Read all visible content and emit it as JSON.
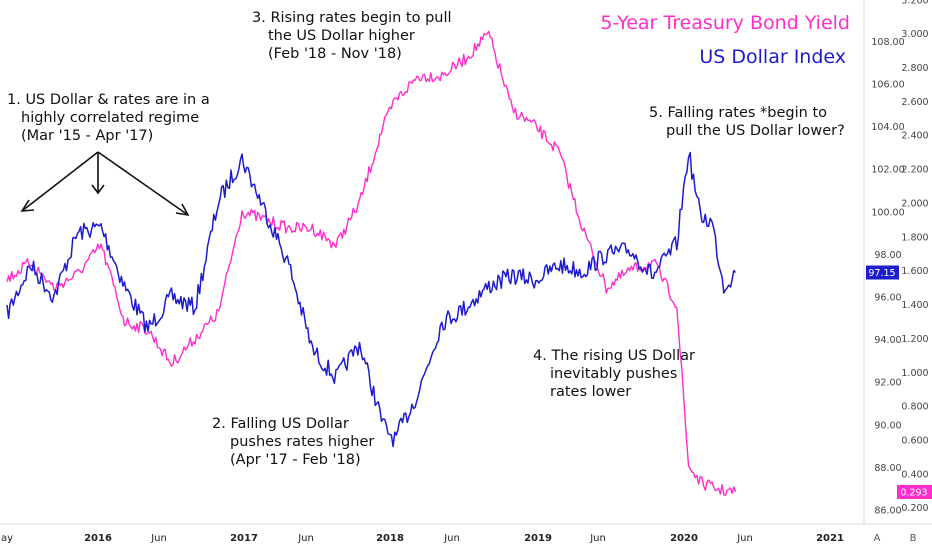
{
  "chart_data": {
    "type": "line",
    "title": "5-Year Treasury Bond Yield",
    "subtitle": "US Dollar Index",
    "x_ticks": [
      "ay",
      "2016",
      "Jun",
      "2017",
      "Jun",
      "2018",
      "Jun",
      "2019",
      "Jun",
      "2020",
      "Jun",
      "2021"
    ],
    "x_ticks_bold": [
      "2016",
      "2017",
      "2018",
      "2019",
      "2020",
      "2021"
    ],
    "y_left": {
      "name": "US Dollar Index",
      "ticks": [
        "86.00",
        "88.00",
        "90.00",
        "92.00",
        "94.00",
        "96.00",
        "98.00",
        "100.00",
        "102.00",
        "104.00",
        "106.00",
        "108.00"
      ],
      "ylim": [
        86,
        109
      ]
    },
    "y_right": {
      "name": "5-Year Treasury Bond Yield",
      "ticks": [
        "0.200",
        "0.400",
        "0.600",
        "0.800",
        "1.000",
        "1.200",
        "1.400",
        "1.600",
        "1.800",
        "2.000",
        "2.200",
        "2.400",
        "2.600",
        "2.800",
        "3.000",
        "3.200"
      ],
      "ylim": [
        0.2,
        3.2
      ]
    },
    "series": [
      {
        "name": "US Dollar Index",
        "color": "#1c1ccc",
        "axis": "left",
        "x": [
          "2015-05",
          "2015-07",
          "2015-09",
          "2015-11",
          "2016-01",
          "2016-03",
          "2016-05",
          "2016-07",
          "2016-09",
          "2016-11",
          "2017-01",
          "2017-03",
          "2017-05",
          "2017-07",
          "2017-09",
          "2017-11",
          "2018-01",
          "2018-02",
          "2018-04",
          "2018-06",
          "2018-08",
          "2018-10",
          "2018-12",
          "2019-02",
          "2019-04",
          "2019-06",
          "2019-08",
          "2019-10",
          "2019-12",
          "2020-02",
          "2020-03",
          "2020-04",
          "2020-05",
          "2020-06",
          "2020-07"
        ],
        "y": [
          95.2,
          97.5,
          96.0,
          99.0,
          99.3,
          96.5,
          94.5,
          96.0,
          95.5,
          100.5,
          102.5,
          100.0,
          97.5,
          93.5,
          92.2,
          93.8,
          90.0,
          89.3,
          91.5,
          94.8,
          95.5,
          96.5,
          97.0,
          96.8,
          97.5,
          97.2,
          98.0,
          98.2,
          97.0,
          98.5,
          102.8,
          99.8,
          99.5,
          96.5,
          97.15
        ]
      },
      {
        "name": "5-Year Treasury Bond Yield",
        "color": "#ff2ecb",
        "axis": "right",
        "x": [
          "2015-05",
          "2015-07",
          "2015-09",
          "2015-11",
          "2016-01",
          "2016-03",
          "2016-05",
          "2016-07",
          "2016-09",
          "2016-11",
          "2017-01",
          "2017-03",
          "2017-05",
          "2017-07",
          "2017-09",
          "2017-11",
          "2018-01",
          "2018-02",
          "2018-04",
          "2018-06",
          "2018-08",
          "2018-10",
          "2018-12",
          "2019-02",
          "2019-04",
          "2019-06",
          "2019-08",
          "2019-10",
          "2019-12",
          "2020-02",
          "2020-03",
          "2020-04",
          "2020-05",
          "2020-06",
          "2020-07"
        ],
        "y": [
          1.55,
          1.65,
          1.5,
          1.58,
          1.75,
          1.3,
          1.25,
          1.05,
          1.2,
          1.35,
          1.95,
          1.9,
          1.85,
          1.85,
          1.75,
          2.0,
          2.45,
          2.6,
          2.75,
          2.75,
          2.85,
          3.0,
          2.55,
          2.45,
          2.3,
          1.85,
          1.5,
          1.6,
          1.65,
          1.4,
          0.45,
          0.35,
          0.32,
          0.3,
          0.293
        ]
      }
    ],
    "last_values": {
      "dollar": "97.15",
      "yield": "0.293"
    },
    "annotations": [
      {
        "lines": [
          "1. US Dollar & rates are in a",
          "highly correlated regime",
          "(Mar '15 - Apr '17)"
        ]
      },
      {
        "lines": [
          "2. Falling US Dollar",
          "pushes rates higher",
          "(Apr '17 - Feb '18)"
        ]
      },
      {
        "lines": [
          "3. Rising rates begin to pull",
          "the US Dollar higher",
          "(Feb '18 - Nov '18)"
        ]
      },
      {
        "lines": [
          "4. The rising US Dollar",
          "inevitably pushes",
          "rates lower"
        ]
      },
      {
        "lines": [
          "5. Falling rates *begin to",
          "pull the US Dollar lower?"
        ]
      }
    ],
    "axis_buttons": [
      "A",
      "B"
    ]
  }
}
